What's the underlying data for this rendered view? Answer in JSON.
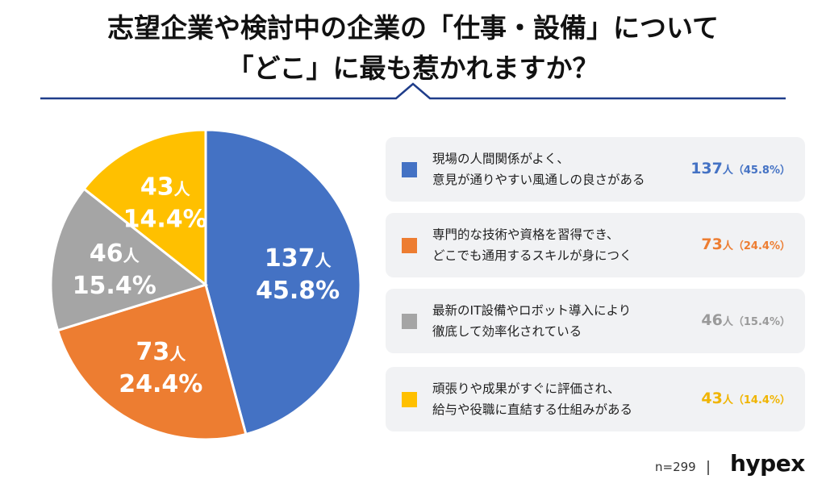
{
  "title": {
    "line1": "志望企業や検討中の企業の「仕事・設備」について",
    "line2": "「どこ」に最も惹かれますか？"
  },
  "chart_data": {
    "type": "pie",
    "categories": [
      "現場の人間関係がよく、意見が通りやすい風通しの良さがある",
      "専門的な技術や資格を習得でき、どこでも通用するスキルが身につく",
      "最新のIT設備やロボット導入により徹底して効率化されている",
      "頑張りや成果がすぐに評価され、給与や役職に直結する仕組みがある"
    ],
    "values": [
      137,
      73,
      46,
      43
    ],
    "percentages": [
      "45.8%",
      "24.4%",
      "15.4%",
      "14.4%"
    ],
    "unit": "人",
    "colors": [
      "#4472c4",
      "#ed7d31",
      "#a5a5a5",
      "#ffc000"
    ],
    "total_label": "n=299"
  },
  "legend": [
    {
      "line1": "現場の人間関係がよく、",
      "line2": "意見が通りやすい風通しの良さがある",
      "count": "137",
      "unit": "人",
      "pct": "（45.8%）",
      "color": "#4472c4"
    },
    {
      "line1": "専門的な技術や資格を習得でき、",
      "line2": "どこでも通用するスキルが身につく",
      "count": "73",
      "unit": "人",
      "pct": "（24.4%）",
      "color": "#ed7d31"
    },
    {
      "line1": "最新のIT設備やロボット導入により",
      "line2": "徹底して効率化されている",
      "count": "46",
      "unit": "人",
      "pct": "（15.4%）",
      "color": "#a5a5a5"
    },
    {
      "line1": "頑張りや成果がすぐに評価され、",
      "line2": "給与や役職に直結する仕組みがある",
      "count": "43",
      "unit": "人",
      "pct": "（14.4%）",
      "color": "#ffc000"
    }
  ],
  "footer": {
    "n": "n=299",
    "separator": "|",
    "logo": "hypex"
  },
  "rule_color": "#1f3d8a"
}
